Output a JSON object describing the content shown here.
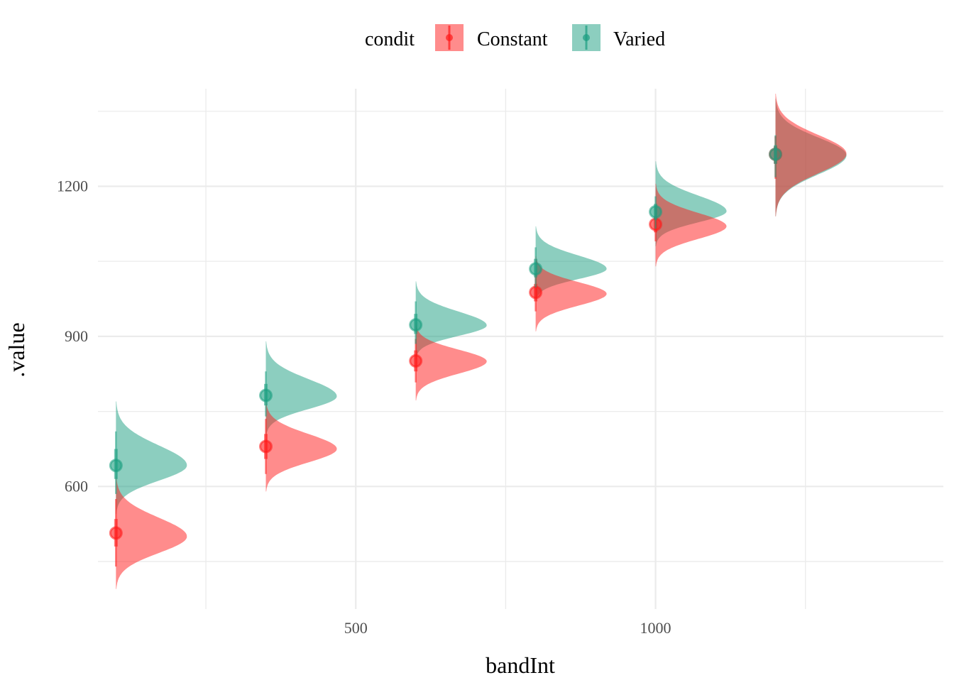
{
  "chart_data": {
    "type": "halfeye",
    "title": "",
    "xlabel": "bandInt",
    "ylabel": ".value",
    "xlim": [
      70,
      1480
    ],
    "ylim": [
      355,
      1395
    ],
    "x_ticks": [
      500,
      1000
    ],
    "x_tick_labels": [
      "500",
      "1000"
    ],
    "y_ticks": [
      600,
      900,
      1200
    ],
    "y_tick_labels": [
      "600",
      "900",
      "1200"
    ],
    "grid": true,
    "legend": {
      "title": "condit",
      "position": "top",
      "entries": [
        "Constant",
        "Varied"
      ]
    },
    "x_categories": [
      100,
      350,
      600,
      800,
      1000,
      1200
    ],
    "series": [
      {
        "name": "Constant",
        "color": "#ff1a1a",
        "points": [
          {
            "x": 100,
            "median": 507,
            "inner": [
              480,
              535
            ],
            "outer": [
              440,
              575
            ],
            "dist_range": [
              395,
              620
            ],
            "peak": 500,
            "sd": 34
          },
          {
            "x": 350,
            "median": 680,
            "inner": [
              655,
              705
            ],
            "outer": [
              625,
              735
            ],
            "dist_range": [
              590,
              770
            ],
            "peak": 675,
            "sd": 30
          },
          {
            "x": 600,
            "median": 851,
            "inner": [
              830,
              872
            ],
            "outer": [
              808,
              895
            ],
            "dist_range": [
              772,
              925
            ],
            "peak": 850,
            "sd": 25
          },
          {
            "x": 800,
            "median": 988,
            "inner": [
              970,
              1005
            ],
            "outer": [
              950,
              1025
            ],
            "dist_range": [
              910,
              1060
            ],
            "peak": 985,
            "sd": 22
          },
          {
            "x": 1000,
            "median": 1124,
            "inner": [
              1108,
              1140
            ],
            "outer": [
              1090,
              1158
            ],
            "dist_range": [
              1040,
              1205
            ],
            "peak": 1120,
            "sd": 21
          },
          {
            "x": 1200,
            "median": 1264,
            "inner": [
              1245,
              1280
            ],
            "outer": [
              1215,
              1300
            ],
            "dist_range": [
              1140,
              1385
            ],
            "peak": 1265,
            "sd": 22
          }
        ]
      },
      {
        "name": "Varied",
        "color": "#1a9e80",
        "points": [
          {
            "x": 100,
            "median": 642,
            "inner": [
              615,
              675
            ],
            "outer": [
              585,
              710
            ],
            "dist_range": [
              545,
              770
            ],
            "peak": 642,
            "sd": 34
          },
          {
            "x": 350,
            "median": 782,
            "inner": [
              762,
              805
            ],
            "outer": [
              740,
              830
            ],
            "dist_range": [
              700,
              890
            ],
            "peak": 780,
            "sd": 26
          },
          {
            "x": 600,
            "median": 923,
            "inner": [
              905,
              945
            ],
            "outer": [
              885,
              970
            ],
            "dist_range": [
              855,
              1010
            ],
            "peak": 922,
            "sd": 24
          },
          {
            "x": 800,
            "median": 1035,
            "inner": [
              1018,
              1055
            ],
            "outer": [
              998,
              1078
            ],
            "dist_range": [
              970,
              1120
            ],
            "peak": 1035,
            "sd": 21
          },
          {
            "x": 1000,
            "median": 1149,
            "inner": [
              1133,
              1165
            ],
            "outer": [
              1115,
              1180
            ],
            "dist_range": [
              1080,
              1250
            ],
            "peak": 1150,
            "sd": 20
          },
          {
            "x": 1200,
            "median": 1264,
            "inner": [
              1245,
              1282
            ],
            "outer": [
              1218,
              1302
            ],
            "dist_range": [
              1140,
              1375
            ],
            "peak": 1262,
            "sd": 22
          }
        ]
      }
    ]
  }
}
